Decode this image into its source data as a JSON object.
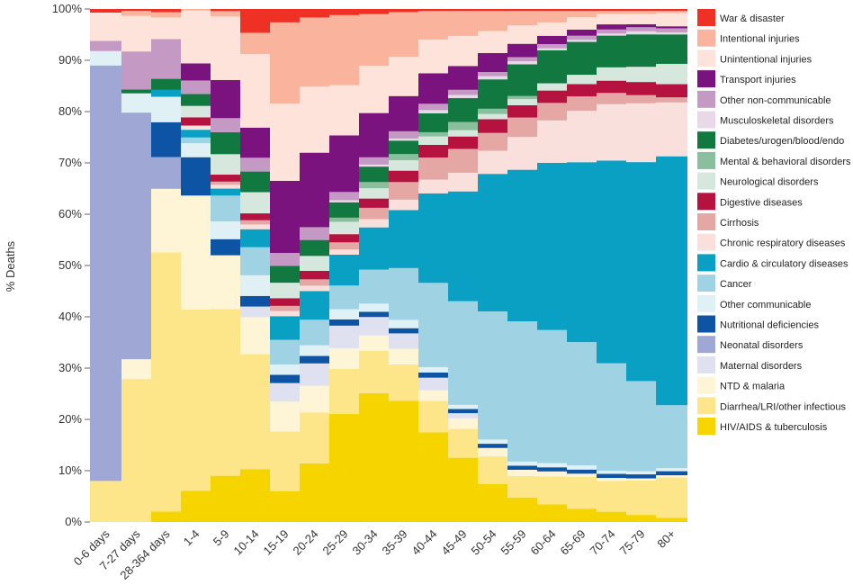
{
  "chart_data": {
    "type": "bar",
    "stacked": true,
    "normalized": true,
    "bar_width": "variable",
    "xlabel": "",
    "ylabel": "% Deaths",
    "ylim": [
      0,
      100
    ],
    "y_ticks": [
      "0%",
      "10%",
      "20%",
      "30%",
      "40%",
      "50%",
      "60%",
      "70%",
      "80%",
      "90%",
      "100%"
    ],
    "legend_position": "right",
    "categories": [
      "0-6 days",
      "7-27 days",
      "28-364 days",
      "1-4",
      "5-9",
      "10-14",
      "15-19",
      "20-24",
      "25-29",
      "30-34",
      "35-39",
      "40-44",
      "45-49",
      "50-54",
      "55-59",
      "60-64",
      "65-69",
      "70-74",
      "75-79",
      "80+"
    ],
    "series": [
      {
        "name": "HIV/AIDS & tuberculosis",
        "color": "#f5d400",
        "values": [
          0,
          0,
          2,
          6,
          8.6,
          10,
          6,
          11,
          21,
          25,
          23.4,
          17,
          12.4,
          7.2,
          4.8,
          3.4,
          2.6,
          2,
          1.4,
          0.8
        ]
      },
      {
        "name": "Diarrhea/LRI/other infectious",
        "color": "#fde68a",
        "values": [
          8,
          29,
          49,
          35,
          31,
          21.7,
          11.6,
          9.6,
          8.8,
          8.2,
          7,
          6,
          5.6,
          5.3,
          4.2,
          5.4,
          6.2,
          6,
          6.8,
          8
        ]
      },
      {
        "name": "NTD & malaria",
        "color": "#fdf5d6",
        "values": [
          0,
          4,
          12,
          22,
          10,
          7,
          5.8,
          5,
          4,
          3,
          3,
          2,
          2,
          1.6,
          1.2,
          1,
          0.6,
          0.6,
          0.4,
          0.4
        ]
      },
      {
        "name": "Maternal disorders",
        "color": "#e0e1f0",
        "values": [
          0,
          0,
          0,
          0,
          0,
          2,
          3.6,
          4.2,
          4.4,
          3.6,
          3,
          2.4,
          1,
          0,
          0,
          0,
          0,
          0,
          0,
          0
        ]
      },
      {
        "name": "Neonatal disorders",
        "color": "#9fa8d4",
        "values": [
          81,
          50,
          6,
          0,
          0,
          0,
          0,
          0,
          0,
          0,
          0,
          0,
          0,
          0,
          0,
          0,
          0,
          0,
          0,
          0
        ]
      },
      {
        "name": "Nutritional deficiencies",
        "color": "#0d55a4",
        "values": [
          0,
          0,
          6.6,
          7.4,
          3,
          2,
          1.6,
          1.4,
          1.2,
          1,
          1,
          1,
          0.8,
          0.8,
          0.8,
          0.8,
          0.8,
          0.8,
          0.8,
          0.8
        ]
      },
      {
        "name": "Other communicable",
        "color": "#dff1f4",
        "values": [
          2.8,
          3.9,
          4.8,
          2.7,
          3.3,
          3.9,
          2,
          2,
          2,
          1.6,
          1.6,
          1,
          0.8,
          0.8,
          0.8,
          0.8,
          0.8,
          0.6,
          0.6,
          0.6
        ]
      },
      {
        "name": "Cancer",
        "color": "#9fd3e3",
        "values": [
          0,
          0,
          0,
          1.1,
          4.8,
          5.3,
          4.8,
          4.8,
          4.6,
          6.6,
          10,
          16,
          20,
          24.4,
          27.4,
          25.8,
          24,
          21,
          17.8,
          12.4
        ]
      },
      {
        "name": "Cardio & circulatory diseases",
        "color": "#0aa0c4",
        "values": [
          0,
          0,
          1.3,
          1.5,
          1.3,
          3.4,
          4.6,
          5.4,
          6,
          8.2,
          11.2,
          17,
          21.2,
          26.2,
          29.6,
          32.4,
          35,
          39.6,
          43.2,
          49
        ]
      },
      {
        "name": "Chronic respiratory diseases",
        "color": "#f9e0dd",
        "values": [
          0,
          0,
          0,
          0.8,
          0.7,
          0.9,
          1,
          1,
          1,
          1.6,
          2,
          2.6,
          3.6,
          4.4,
          6.4,
          8.2,
          10,
          11,
          11.6,
          10.6
        ]
      },
      {
        "name": "Cirrhosis",
        "color": "#e4a7a4",
        "values": [
          0,
          0,
          0,
          0,
          0.6,
          0.8,
          1,
          1.2,
          1.4,
          2.2,
          3.4,
          4.2,
          4.6,
          3.4,
          3.8,
          3.4,
          2.8,
          2.2,
          1.6,
          1
        ]
      },
      {
        "name": "Digestive diseases",
        "color": "#b5123f",
        "values": [
          0,
          0,
          0,
          1.6,
          1.3,
          1.3,
          1.5,
          1.6,
          1.6,
          1.8,
          2.2,
          2.4,
          2.4,
          2.6,
          2.4,
          2.4,
          2.4,
          2.4,
          2.6,
          2.6
        ]
      },
      {
        "name": "Neurological disorders",
        "color": "#d6e8de",
        "values": [
          0,
          0,
          0,
          2.2,
          3.8,
          4,
          3,
          2.8,
          2.4,
          2,
          2,
          1.6,
          1.2,
          1,
          1.2,
          1.4,
          1.8,
          2.6,
          3,
          4
        ]
      },
      {
        "name": "Mental & behavioral disorders",
        "color": "#8abf9d",
        "values": [
          0,
          0,
          0,
          0,
          0,
          0,
          0,
          0,
          0.8,
          1.2,
          1.2,
          0.8,
          1.6,
          1,
          0.6,
          0,
          0,
          0,
          0,
          0
        ]
      },
      {
        "name": "Diabetes/urogen/blood/endo",
        "color": "#117840",
        "values": [
          0,
          0.8,
          2.1,
          2.3,
          4.1,
          3.9,
          3.3,
          3,
          3,
          3,
          2.6,
          3.6,
          4.6,
          5.6,
          6.2,
          6.4,
          6.4,
          6.2,
          6.4,
          5.8
        ]
      },
      {
        "name": "Musculoskeletal disorders",
        "color": "#e8d8e8",
        "values": [
          0,
          0,
          0,
          0,
          0,
          0,
          0,
          0,
          0.4,
          0.4,
          0.4,
          0.6,
          0.6,
          0.6,
          0.6,
          0.4,
          0.4,
          0.4,
          0.6,
          0.4
        ]
      },
      {
        "name": "Other non-communicable",
        "color": "#c49ac5",
        "values": [
          2,
          7.7,
          7.5,
          2.6,
          2.6,
          2.6,
          2.5,
          2.4,
          1.6,
          1.4,
          1.4,
          1.2,
          1,
          0.8,
          0.8,
          0.8,
          0.8,
          0.8,
          0.8,
          0.8
        ]
      },
      {
        "name": "Transport injuries",
        "color": "#7a137d",
        "values": [
          0,
          0,
          0,
          3.3,
          7.1,
          5.7,
          14,
          14,
          11,
          8.6,
          6.8,
          5.8,
          4.6,
          3.6,
          2.6,
          1.6,
          1.2,
          1,
          0.6,
          0.4
        ]
      },
      {
        "name": "Unintentional injuries",
        "color": "#fde3da",
        "values": [
          5.5,
          7.2,
          4.1,
          10.2,
          11.8,
          13.9,
          15,
          12.4,
          9.8,
          9.2,
          7.6,
          6.4,
          5.8,
          4.2,
          3.6,
          2.6,
          2.4,
          2,
          2,
          2.6
        ]
      },
      {
        "name": "Intentional injuries",
        "color": "#fab49d",
        "values": [
          0,
          1,
          1,
          0.3,
          1,
          4,
          15.8,
          13,
          13.6,
          10,
          8.6,
          5.4,
          4.8,
          3.8,
          2.8,
          2.2,
          1.2,
          0.6,
          0.6,
          0.4
        ]
      },
      {
        "name": "War & disaster",
        "color": "#ee3124",
        "values": [
          0.7,
          0.4,
          0.6,
          0,
          0.4,
          4.5,
          2.6,
          1.6,
          1.2,
          1,
          0.6,
          0.4,
          0.4,
          0.4,
          0.4,
          0.4,
          0.4,
          0.4,
          0.4,
          0.4
        ]
      }
    ]
  }
}
